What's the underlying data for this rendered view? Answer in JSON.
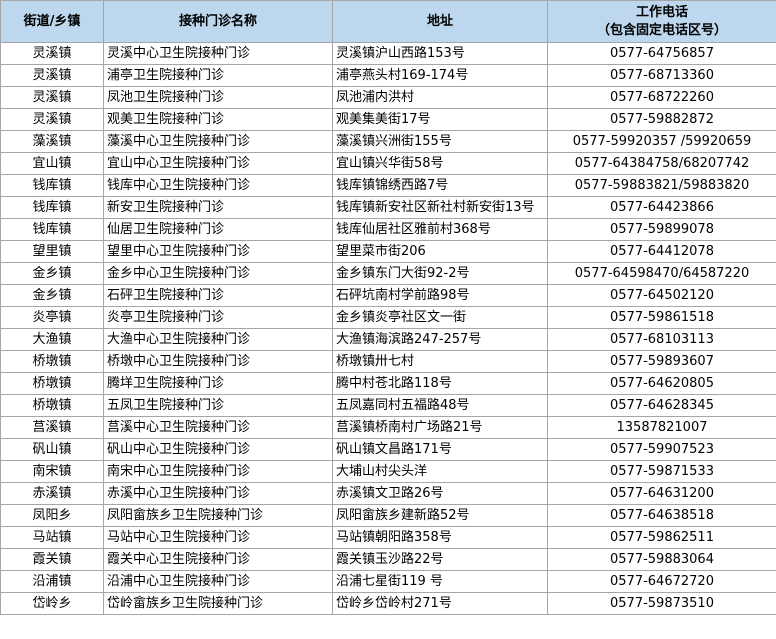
{
  "table": {
    "header": [
      "街道/乡镇",
      "接种门诊名称",
      "地址"
    ],
    "phone_header": [
      "工作电话",
      "（包含固定电话区号）"
    ],
    "rows": [
      [
        "灵溪镇",
        "灵溪中心卫生院接种门诊",
        "灵溪镇沪山西路153号",
        "0577-64756857"
      ],
      [
        "灵溪镇",
        "浦亭卫生院接种门诊",
        "浦亭燕头村169-174号",
        "0577-68713360"
      ],
      [
        "灵溪镇",
        "凤池卫生院接种门诊",
        "凤池浦内洪村",
        "0577-68722260"
      ],
      [
        "灵溪镇",
        "观美卫生院接种门诊",
        "观美集美街17号",
        "0577-59882872"
      ],
      [
        "藻溪镇",
        "藻溪中心卫生院接种门诊",
        "藻溪镇兴洲街155号",
        "0577-59920357 /59920659"
      ],
      [
        "宜山镇",
        "宜山中心卫生院接种门诊",
        "宜山镇兴华街58号",
        "0577-64384758/68207742"
      ],
      [
        "钱库镇",
        "钱库中心卫生院接种门诊",
        "钱库镇锦绣西路7号",
        "0577-59883821/59883820"
      ],
      [
        "钱库镇",
        "新安卫生院接种门诊",
        "钱库镇新安社区新社村新安街13号",
        "0577-64423866"
      ],
      [
        "钱库镇",
        "仙居卫生院接种门诊",
        "钱库仙居社区雅前村368号",
        "0577-59899078"
      ],
      [
        "望里镇",
        "望里中心卫生院接种门诊",
        "望里菜市街206",
        "0577-64412078"
      ],
      [
        "金乡镇",
        "金乡中心卫生院接种门诊",
        "金乡镇东门大街92-2号",
        "0577-64598470/64587220"
      ],
      [
        "金乡镇",
        "石砰卫生院接种门诊",
        "石砰坑南村学前路98号",
        "0577-64502120"
      ],
      [
        "炎亭镇",
        "炎亭卫生院接种门诊",
        "金乡镇炎亭社区文一街",
        "0577-59861518"
      ],
      [
        "大渔镇",
        "大渔中心卫生院接种门诊",
        "大渔镇海滨路247-257号",
        "0577-68103113"
      ],
      [
        "桥墩镇",
        "桥墩中心卫生院接种门诊",
        "桥墩镇卅七村",
        "0577-59893607"
      ],
      [
        "桥墩镇",
        "腾垟卫生院接种门诊",
        "腾中村苍北路118号",
        "0577-64620805"
      ],
      [
        "桥墩镇",
        "五凤卫生院接种门诊",
        "五凤嘉同村五福路48号",
        "0577-64628345"
      ],
      [
        "莒溪镇",
        "莒溪中心卫生院接种门诊",
        "莒溪镇桥南村广场路21号",
        "13587821007"
      ],
      [
        "矾山镇",
        "矾山中心卫生院接种门诊",
        "矾山镇文昌路171号",
        "0577-59907523"
      ],
      [
        "南宋镇",
        "南宋中心卫生院接种门诊",
        "大埔山村尖头洋",
        "0577-59871533"
      ],
      [
        "赤溪镇",
        "赤溪中心卫生院接种门诊",
        "赤溪镇文卫路26号",
        "0577-64631200"
      ],
      [
        "凤阳乡",
        "凤阳畲族乡卫生院接种门诊",
        "凤阳畲族乡建新路52号",
        "0577-64638518"
      ],
      [
        "马站镇",
        "马站中心卫生院接种门诊",
        "马站镇朝阳路358号",
        "0577-59862511"
      ],
      [
        "霞关镇",
        "霞关中心卫生院接种门诊",
        "霞关镇玉沙路22号",
        "0577-59883064"
      ],
      [
        "沿浦镇",
        "沿浦中心卫生院接种门诊",
        "沿浦七星街119 号",
        "0577-64672720"
      ],
      [
        "岱岭乡",
        "岱岭畲族乡卫生院接种门诊",
        "岱岭乡岱岭村271号",
        "0577-59873510"
      ]
    ]
  }
}
